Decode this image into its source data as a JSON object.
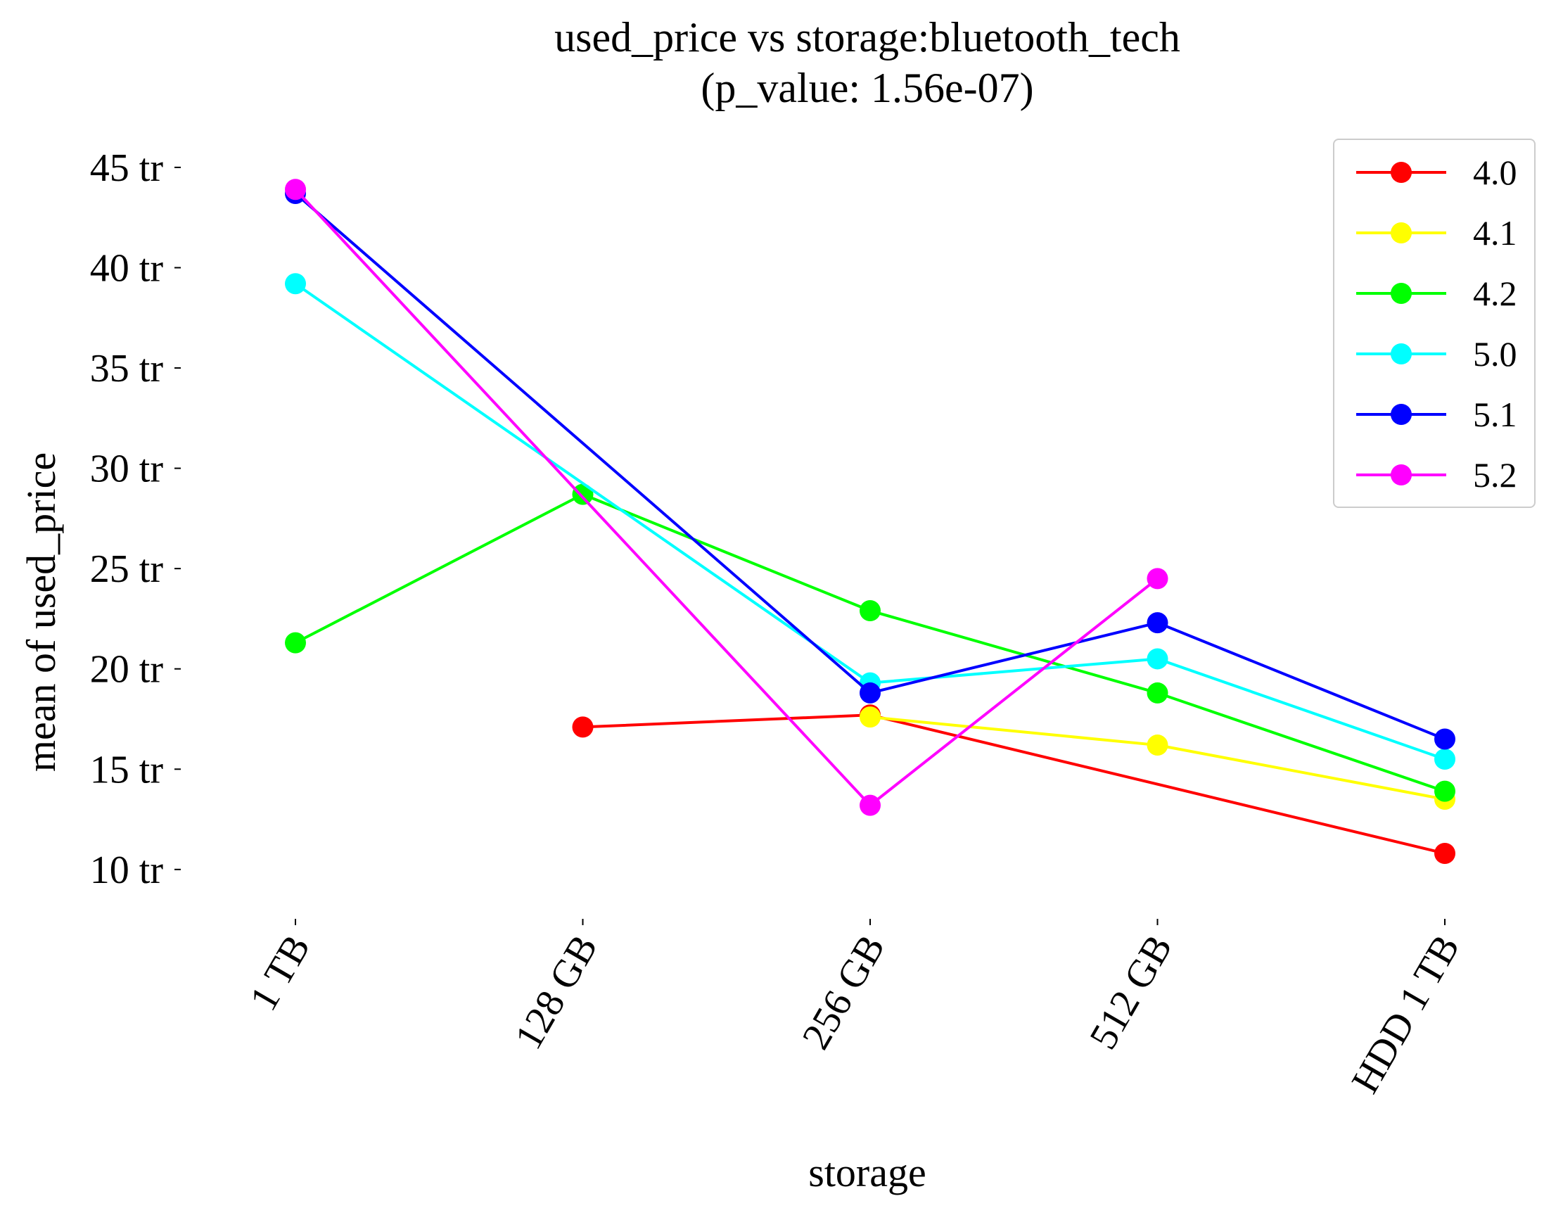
{
  "chart_data": {
    "type": "line",
    "title": "used_price vs storage:bluetooth_tech",
    "subtitle": "(p_value: 1.56e-07)",
    "xlabel": "storage",
    "ylabel": "mean of used_price",
    "categories": [
      "1 TB",
      "128 GB",
      "256 GB",
      "512 GB",
      "HDD 1 TB"
    ],
    "yticks": [
      {
        "value": 10,
        "label": "10 tr"
      },
      {
        "value": 15,
        "label": "15 tr"
      },
      {
        "value": 20,
        "label": "20 tr"
      },
      {
        "value": 25,
        "label": "25 tr"
      },
      {
        "value": 30,
        "label": "30 tr"
      },
      {
        "value": 35,
        "label": "35 tr"
      },
      {
        "value": 40,
        "label": "40 tr"
      },
      {
        "value": 45,
        "label": "45 tr"
      }
    ],
    "ylim": [
      8.1,
      46.4
    ],
    "grid": false,
    "legend_position": "top-right",
    "series": [
      {
        "name": "4.0",
        "color": "#ff0000",
        "values": [
          null,
          17.1,
          17.7,
          null,
          10.8
        ]
      },
      {
        "name": "4.1",
        "color": "#ffff00",
        "values": [
          null,
          null,
          17.6,
          16.2,
          13.5
        ]
      },
      {
        "name": "4.2",
        "color": "#00ff00",
        "values": [
          21.3,
          28.7,
          22.9,
          18.8,
          13.9
        ]
      },
      {
        "name": "5.0",
        "color": "#00ffff",
        "values": [
          39.2,
          null,
          19.3,
          20.5,
          15.5
        ]
      },
      {
        "name": "5.1",
        "color": "#0000ff",
        "values": [
          43.7,
          null,
          18.8,
          22.3,
          16.5
        ]
      },
      {
        "name": "5.2",
        "color": "#ff00ff",
        "values": [
          43.9,
          null,
          13.2,
          24.5,
          null
        ]
      }
    ]
  }
}
